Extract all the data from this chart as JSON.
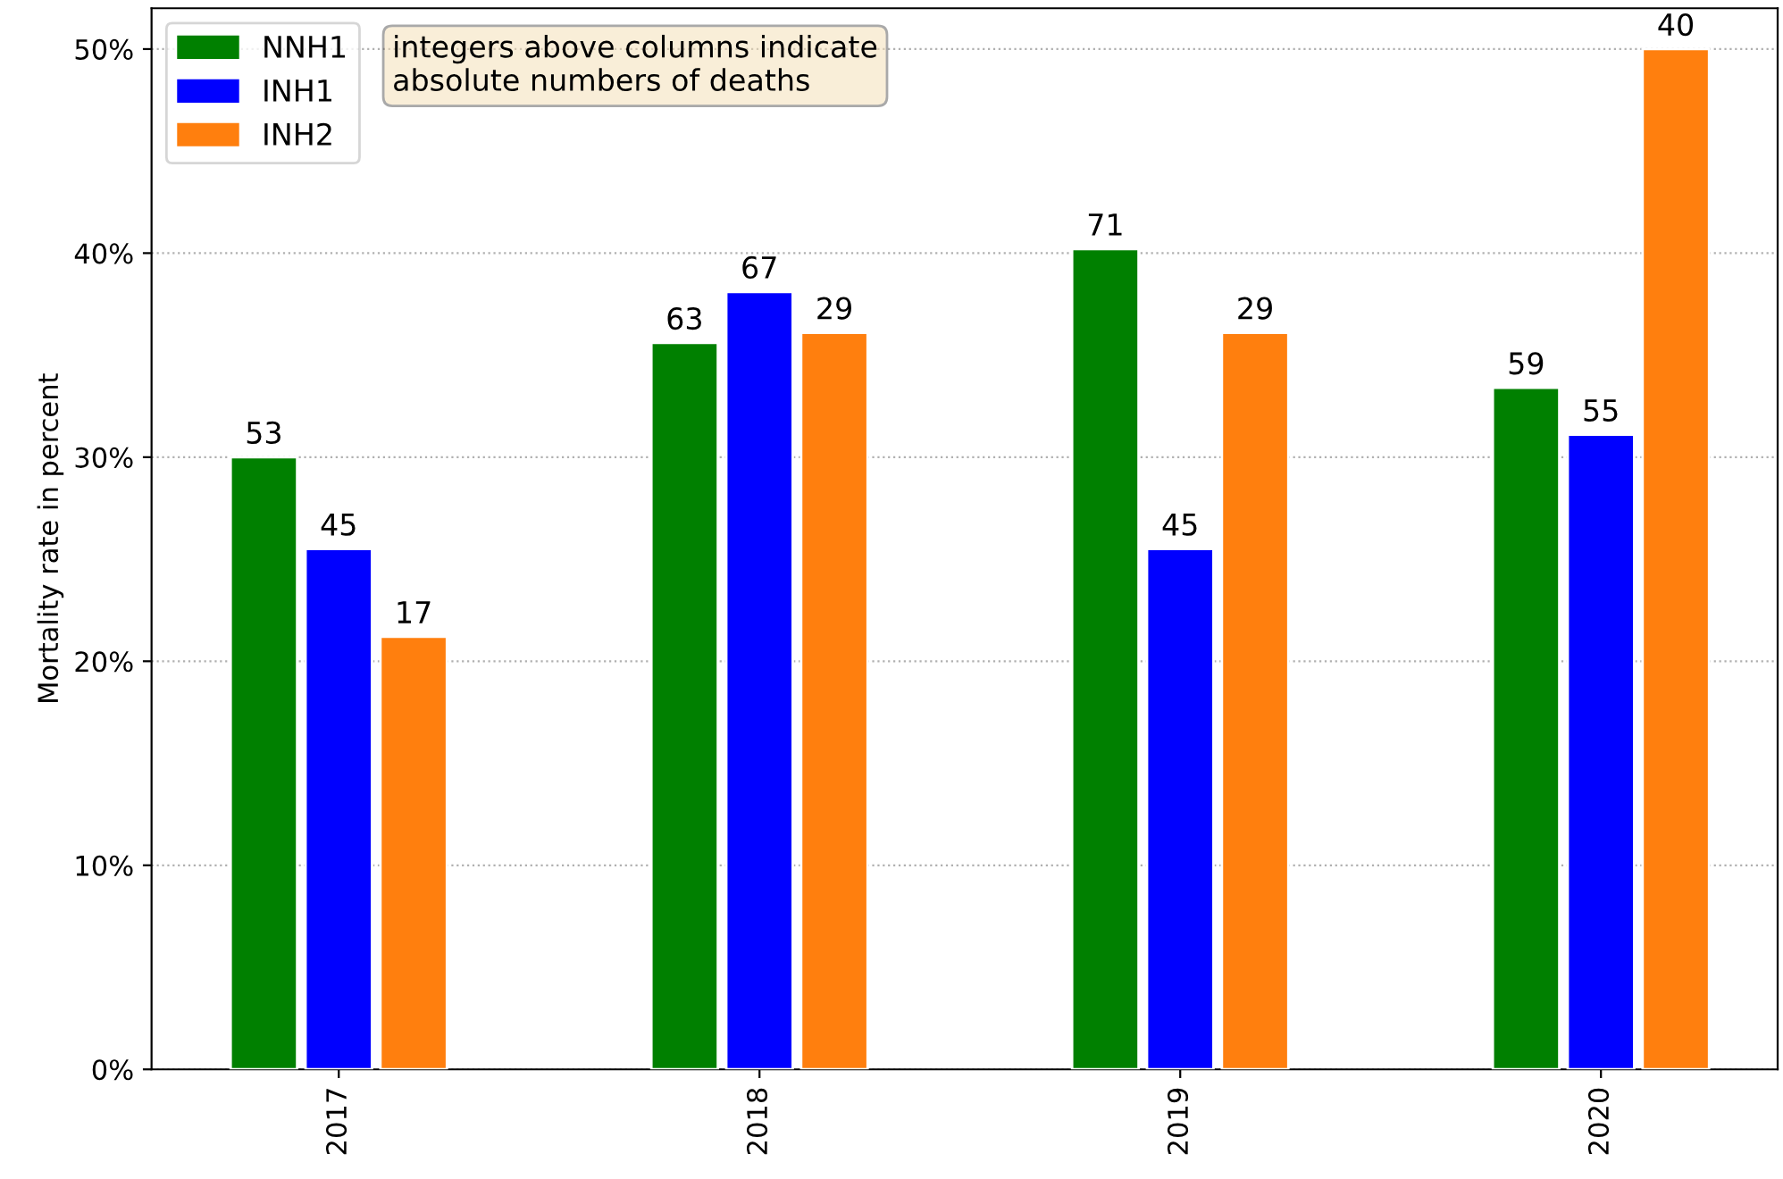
{
  "chart_data": {
    "type": "bar",
    "ylabel": "Mortality rate in percent",
    "categories": [
      "2017",
      "2018",
      "2019",
      "2020"
    ],
    "series": [
      {
        "name": "NNH1",
        "color": "#008000",
        "values": [
          30.0,
          35.6,
          40.2,
          33.4
        ]
      },
      {
        "name": "INH1",
        "color": "#0000ff",
        "values": [
          25.5,
          38.1,
          25.5,
          31.1
        ]
      },
      {
        "name": "INH2",
        "color": "#ff7f0e",
        "values": [
          21.2,
          36.1,
          36.1,
          50.0
        ]
      }
    ],
    "ylim": [
      0,
      52
    ],
    "yticks": [
      {
        "value": 0,
        "label": "0%"
      },
      {
        "value": 10,
        "label": "10%"
      },
      {
        "value": 20,
        "label": "20%"
      },
      {
        "value": 30,
        "label": "30%"
      },
      {
        "value": 40,
        "label": "40%"
      },
      {
        "value": 50,
        "label": "50%"
      }
    ],
    "grid": "y",
    "legend": "top left",
    "annotations": [
      "integers above columns indicate\nabsolute numbers of deaths",
      "53",
      "63",
      "71",
      "59",
      "45",
      "67",
      "45",
      "55",
      "17",
      "29",
      "29",
      "40"
    ]
  }
}
